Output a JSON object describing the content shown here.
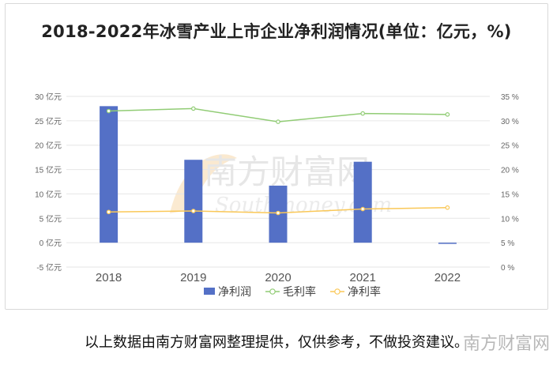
{
  "title": "2018-2022年冰雪产业上市企业净利润情况(单位：亿元，%)",
  "footer": "以上数据由南方财富网整理提供，仅供参考，不做投资建议。",
  "watermark_cn": "南方财富网",
  "watermark_en": "Southmoney.com",
  "brand_bottom": "南方财富网",
  "colors": {
    "bar": "#5470c6",
    "gross_margin": "#91cc75",
    "net_margin": "#fac858",
    "grid": "#e6e6e6",
    "axis_text": "#666666"
  },
  "chart_data": {
    "type": "bar",
    "categories": [
      "2018",
      "2019",
      "2020",
      "2021",
      "2022"
    ],
    "series": [
      {
        "name": "净利润",
        "type": "bar",
        "axis": "left",
        "values": [
          28.0,
          17.0,
          11.7,
          16.6,
          -0.2
        ]
      },
      {
        "name": "毛利率",
        "type": "line",
        "axis": "right",
        "values": [
          32.0,
          32.5,
          29.8,
          31.5,
          31.3
        ]
      },
      {
        "name": "净利率",
        "type": "line",
        "axis": "right",
        "values": [
          11.3,
          11.5,
          11.1,
          11.9,
          12.2
        ]
      }
    ],
    "y_left": {
      "min": -5,
      "max": 30,
      "ticks": [
        30,
        25,
        20,
        15,
        10,
        5,
        0,
        -5
      ],
      "tick_labels": [
        "30 亿元",
        "25 亿元",
        "20 亿元",
        "15 亿元",
        "10 亿元",
        "5 亿元",
        "0 亿元",
        "-5 亿元"
      ]
    },
    "y_right": {
      "min": 0,
      "max": 35,
      "ticks": [
        35,
        30,
        25,
        20,
        15,
        10,
        5,
        0
      ],
      "tick_labels": [
        "35 %",
        "30 %",
        "25 %",
        "20 %",
        "15 %",
        "10 %",
        "5 %",
        "0 %"
      ]
    },
    "grid": "horizontal",
    "legend": "bottom-center"
  }
}
